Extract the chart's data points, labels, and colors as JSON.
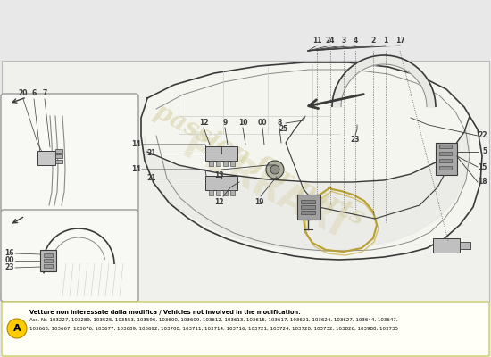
{
  "bg_color": "#e8e8e8",
  "main_bg": "#f0f0ed",
  "white": "#ffffff",
  "draw_color": "#3a3a3a",
  "light_draw": "#888888",
  "lighter_draw": "#aaaaaa",
  "note_bg": "#fffff8",
  "note_border": "#cccc66",
  "circle_color": "#ffcc00",
  "circle_text": "A",
  "watermark_color": "#d4cfa0",
  "note_title": "Vetture non interessate dalla modifica / Vehicles not involved in the modification:",
  "note_line1": "Ass. Nr. 103227, 103289, 103525, 103553, 103596, 103600, 103609, 103612, 103613, 103615, 103617, 103621, 103624, 103627, 103644, 103647,",
  "note_line2": "103663, 103667, 103676, 103677, 103689, 103692, 103708, 103711, 103714, 103716, 103721, 103724, 103728, 103732, 103826, 103988, 103735"
}
